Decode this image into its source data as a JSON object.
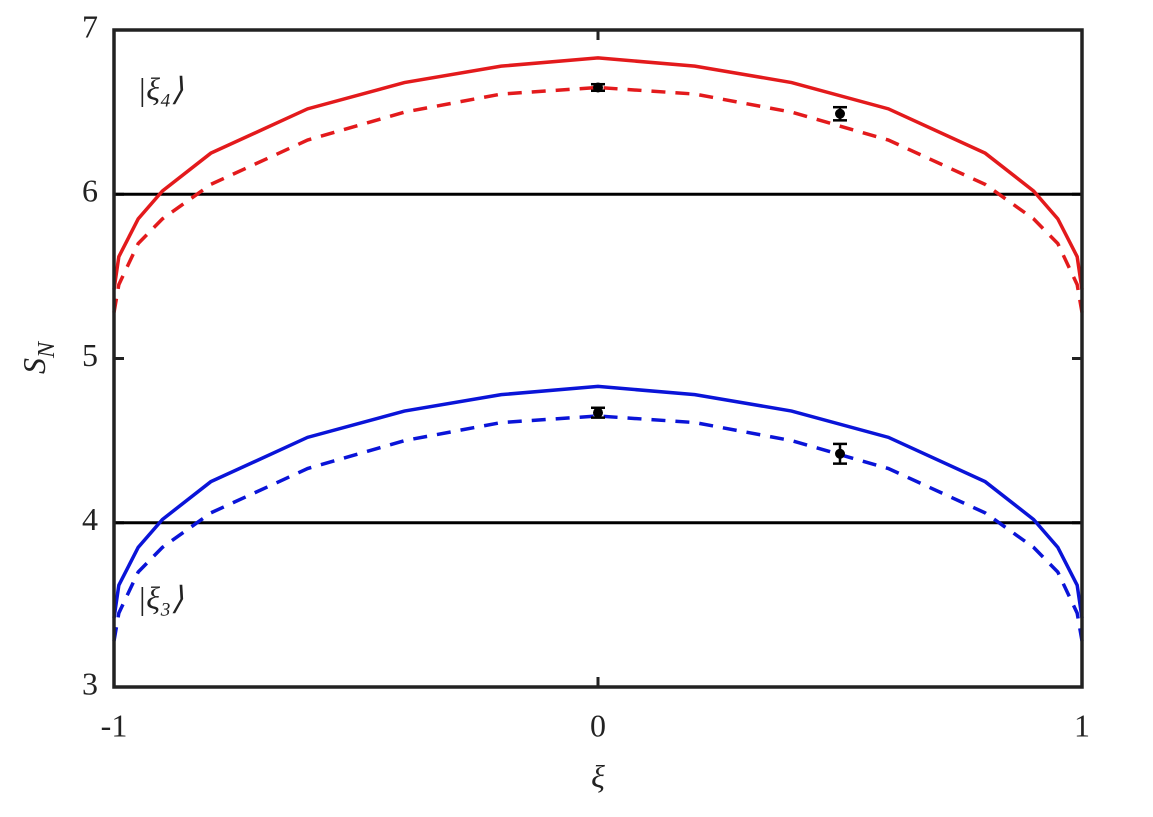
{
  "chart_data": {
    "type": "line",
    "xlabel": "ξ",
    "ylabel": "S",
    "ylabel_subscript": "N",
    "xlim": [
      -1,
      1
    ],
    "ylim": [
      3,
      7
    ],
    "xticks": [
      -1,
      0,
      1
    ],
    "yticks": [
      3,
      4,
      5,
      6,
      7
    ],
    "x": [
      -1,
      -0.99,
      -0.95,
      -0.9,
      -0.8,
      -0.6,
      -0.4,
      -0.2,
      0,
      0.2,
      0.4,
      0.6,
      0.8,
      0.9,
      0.95,
      0.99,
      1
    ],
    "series": [
      {
        "color": "#e31a1c",
        "dash": false,
        "values": [
          5.42,
          5.62,
          5.85,
          6.02,
          6.25,
          6.52,
          6.68,
          6.78,
          6.83,
          6.78,
          6.68,
          6.52,
          6.25,
          6.02,
          5.85,
          5.62,
          5.42
        ]
      },
      {
        "color": "#e31a1c",
        "dash": true,
        "values": [
          5.28,
          5.45,
          5.7,
          5.85,
          6.06,
          6.33,
          6.5,
          6.61,
          6.65,
          6.61,
          6.5,
          6.33,
          6.06,
          5.85,
          5.7,
          5.45,
          5.28
        ]
      },
      {
        "color": "#0a14d8",
        "dash": false,
        "values": [
          3.42,
          3.62,
          3.85,
          4.02,
          4.25,
          4.52,
          4.68,
          4.78,
          4.83,
          4.78,
          4.68,
          4.52,
          4.25,
          4.02,
          3.85,
          3.62,
          3.42
        ]
      },
      {
        "color": "#0a14d8",
        "dash": true,
        "values": [
          3.28,
          3.45,
          3.7,
          3.85,
          4.06,
          4.33,
          4.5,
          4.61,
          4.65,
          4.61,
          4.5,
          4.33,
          4.06,
          3.85,
          3.7,
          3.45,
          3.28
        ]
      }
    ],
    "points": {
      "color": "#000000",
      "x": [
        0,
        0.5,
        0,
        0.5
      ],
      "values": [
        6.65,
        6.49,
        4.67,
        4.42
      ],
      "errors": [
        0.02,
        0.04,
        0.03,
        0.06
      ]
    },
    "reference_lines": {
      "color": "#000000",
      "values": [
        6,
        4
      ]
    },
    "annotations": [
      {
        "text": "|ξ₄⟩",
        "x": -0.9,
        "y": 6.62
      },
      {
        "text": "|ξ₃⟩",
        "x": -0.9,
        "y": 3.52
      }
    ]
  }
}
